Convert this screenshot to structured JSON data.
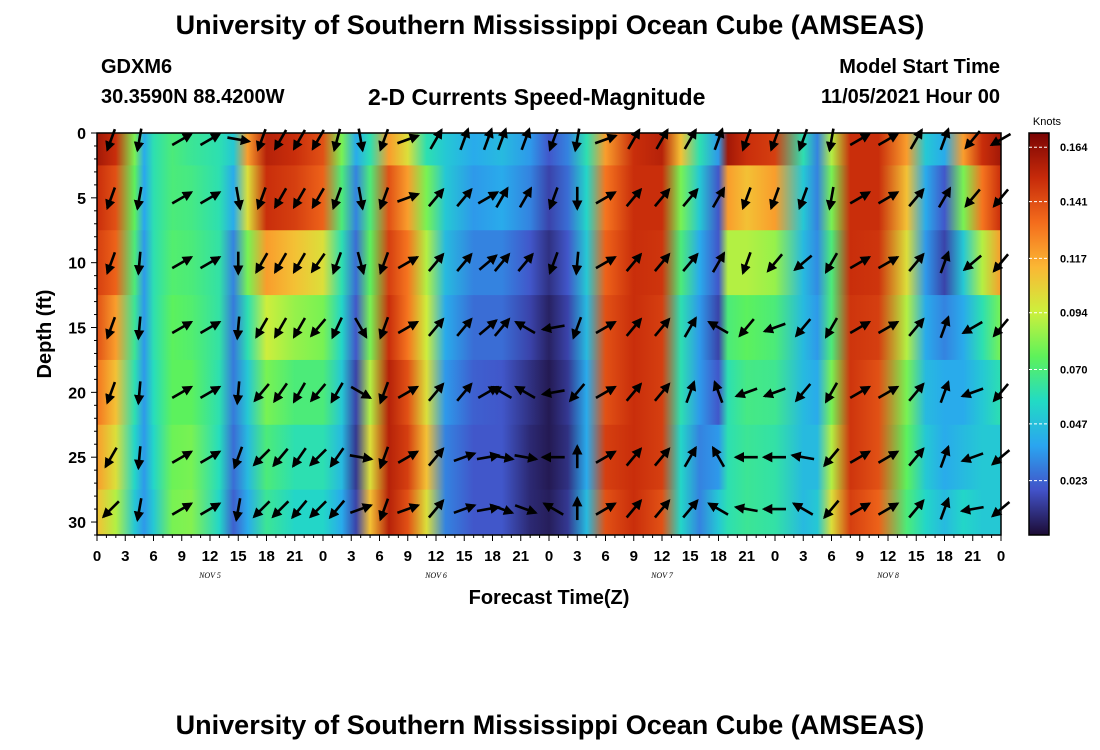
{
  "header": {
    "main_title": "University of Southern Mississippi Ocean Cube (AMSEAS)",
    "station_id": "GDXM6",
    "station_coords": "30.3590N  88.4200W",
    "chart_title": "2-D Currents Speed-Magnitude",
    "model_start_label": "Model Start Time",
    "model_start_value": "11/05/2021 Hour 00"
  },
  "footer": {
    "bottom_title": "University of Southern Mississippi Ocean Cube (AMSEAS)"
  },
  "chart_data": {
    "type": "heatmap",
    "title": "2-D Currents Speed-Magnitude",
    "xlabel": "Forecast Time(Z)",
    "ylabel": "Depth (ft)",
    "xlim": [
      0,
      96
    ],
    "ylim": [
      31,
      0
    ],
    "x_ticks": [
      {
        "hour": 0,
        "label": "0"
      },
      {
        "hour": 3,
        "label": "3"
      },
      {
        "hour": 6,
        "label": "6"
      },
      {
        "hour": 9,
        "label": "9"
      },
      {
        "hour": 12,
        "label": "12"
      },
      {
        "hour": 15,
        "label": "15"
      },
      {
        "hour": 18,
        "label": "18"
      },
      {
        "hour": 21,
        "label": "21"
      },
      {
        "hour": 24,
        "label": "0"
      },
      {
        "hour": 27,
        "label": "3"
      },
      {
        "hour": 30,
        "label": "6"
      },
      {
        "hour": 33,
        "label": "9"
      },
      {
        "hour": 36,
        "label": "12"
      },
      {
        "hour": 39,
        "label": "15"
      },
      {
        "hour": 42,
        "label": "18"
      },
      {
        "hour": 45,
        "label": "21"
      },
      {
        "hour": 48,
        "label": "0"
      },
      {
        "hour": 51,
        "label": "3"
      },
      {
        "hour": 54,
        "label": "6"
      },
      {
        "hour": 57,
        "label": "9"
      },
      {
        "hour": 60,
        "label": "12"
      },
      {
        "hour": 63,
        "label": "15"
      },
      {
        "hour": 66,
        "label": "18"
      },
      {
        "hour": 69,
        "label": "21"
      },
      {
        "hour": 72,
        "label": "0"
      },
      {
        "hour": 75,
        "label": "3"
      },
      {
        "hour": 78,
        "label": "6"
      },
      {
        "hour": 81,
        "label": "9"
      },
      {
        "hour": 84,
        "label": "12"
      },
      {
        "hour": 87,
        "label": "15"
      },
      {
        "hour": 90,
        "label": "18"
      },
      {
        "hour": 93,
        "label": "21"
      },
      {
        "hour": 96,
        "label": "0"
      }
    ],
    "day_labels": [
      {
        "hour": 12,
        "label": "NOV 5"
      },
      {
        "hour": 36,
        "label": "NOV 6"
      },
      {
        "hour": 60,
        "label": "NOV 7"
      },
      {
        "hour": 84,
        "label": "NOV 8"
      }
    ],
    "y_ticks": [
      0,
      5,
      10,
      15,
      20,
      25,
      30
    ],
    "depths": [
      0,
      5,
      10,
      15,
      20,
      25,
      30
    ],
    "speed_knots_by_hour": [
      {
        "hour": 0,
        "speed": [
          0.16,
          0.15,
          0.145,
          0.14,
          0.13,
          0.12,
          0.11
        ]
      },
      {
        "hour": 2,
        "speed": [
          0.15,
          0.14,
          0.135,
          0.12,
          0.11,
          0.1,
          0.09
        ]
      },
      {
        "hour": 4,
        "speed": [
          0.08,
          0.075,
          0.07,
          0.065,
          0.06,
          0.055,
          0.05
        ]
      },
      {
        "hour": 5,
        "speed": [
          0.04,
          0.038,
          0.035,
          0.035,
          0.035,
          0.035,
          0.035
        ]
      },
      {
        "hour": 6,
        "speed": [
          0.06,
          0.06,
          0.06,
          0.06,
          0.058,
          0.055,
          0.05
        ]
      },
      {
        "hour": 8,
        "speed": [
          0.07,
          0.07,
          0.072,
          0.075,
          0.075,
          0.078,
          0.08
        ]
      },
      {
        "hour": 10,
        "speed": [
          0.065,
          0.068,
          0.07,
          0.072,
          0.075,
          0.08,
          0.082
        ]
      },
      {
        "hour": 13,
        "speed": [
          0.06,
          0.06,
          0.062,
          0.062,
          0.06,
          0.058,
          0.055
        ]
      },
      {
        "hour": 14.5,
        "speed": [
          0.05,
          0.04,
          0.03,
          0.028,
          0.028,
          0.025,
          0.022
        ]
      },
      {
        "hour": 16,
        "speed": [
          0.12,
          0.1,
          0.08,
          0.06,
          0.05,
          0.045,
          0.04
        ]
      },
      {
        "hour": 18,
        "speed": [
          0.155,
          0.15,
          0.12,
          0.095,
          0.08,
          0.07,
          0.065
        ]
      },
      {
        "hour": 21,
        "speed": [
          0.15,
          0.145,
          0.11,
          0.085,
          0.07,
          0.06,
          0.055
        ]
      },
      {
        "hour": 24,
        "speed": [
          0.14,
          0.135,
          0.1,
          0.08,
          0.07,
          0.06,
          0.055
        ]
      },
      {
        "hour": 26,
        "speed": [
          0.08,
          0.07,
          0.06,
          0.055,
          0.05,
          0.045,
          0.04
        ]
      },
      {
        "hour": 27.5,
        "speed": [
          0.04,
          0.03,
          0.025,
          0.02,
          0.015,
          0.012,
          0.015
        ]
      },
      {
        "hour": 29,
        "speed": [
          0.06,
          0.07,
          0.075,
          0.08,
          0.09,
          0.1,
          0.11
        ]
      },
      {
        "hour": 31,
        "speed": [
          0.12,
          0.14,
          0.145,
          0.15,
          0.155,
          0.155,
          0.155
        ]
      },
      {
        "hour": 33,
        "speed": [
          0.1,
          0.12,
          0.13,
          0.13,
          0.14,
          0.145,
          0.14
        ]
      },
      {
        "hour": 35,
        "speed": [
          0.06,
          0.08,
          0.09,
          0.095,
          0.1,
          0.11,
          0.1
        ]
      },
      {
        "hour": 37,
        "speed": [
          0.05,
          0.05,
          0.045,
          0.04,
          0.035,
          0.03,
          0.03
        ]
      },
      {
        "hour": 40,
        "speed": [
          0.04,
          0.035,
          0.03,
          0.025,
          0.022,
          0.02,
          0.02
        ]
      },
      {
        "hour": 43,
        "speed": [
          0.045,
          0.04,
          0.03,
          0.025,
          0.02,
          0.02,
          0.02
        ]
      },
      {
        "hour": 46,
        "speed": [
          0.035,
          0.03,
          0.02,
          0.015,
          0.01,
          0.008,
          0.008
        ]
      },
      {
        "hour": 48,
        "speed": [
          0.02,
          0.015,
          0.01,
          0.006,
          0.004,
          0.004,
          0.005
        ]
      },
      {
        "hour": 50,
        "speed": [
          0.03,
          0.025,
          0.02,
          0.015,
          0.012,
          0.01,
          0.012
        ]
      },
      {
        "hour": 52,
        "speed": [
          0.06,
          0.055,
          0.05,
          0.045,
          0.04,
          0.04,
          0.045
        ]
      },
      {
        "hour": 54,
        "speed": [
          0.12,
          0.13,
          0.135,
          0.14,
          0.14,
          0.145,
          0.14
        ]
      },
      {
        "hour": 57,
        "speed": [
          0.15,
          0.15,
          0.15,
          0.15,
          0.15,
          0.15,
          0.15
        ]
      },
      {
        "hour": 60,
        "speed": [
          0.155,
          0.15,
          0.148,
          0.145,
          0.145,
          0.145,
          0.14
        ]
      },
      {
        "hour": 62,
        "speed": [
          0.11,
          0.08,
          0.07,
          0.06,
          0.06,
          0.055,
          0.055
        ]
      },
      {
        "hour": 64,
        "speed": [
          0.06,
          0.05,
          0.04,
          0.035,
          0.035,
          0.03,
          0.03
        ]
      },
      {
        "hour": 66,
        "speed": [
          0.035,
          0.02,
          0.02,
          0.015,
          0.02,
          0.035,
          0.05
        ]
      },
      {
        "hour": 67,
        "speed": [
          0.16,
          0.12,
          0.09,
          0.07,
          0.06,
          0.06,
          0.06
        ]
      },
      {
        "hour": 69,
        "speed": [
          0.15,
          0.11,
          0.09,
          0.075,
          0.068,
          0.065,
          0.065
        ]
      },
      {
        "hour": 72,
        "speed": [
          0.145,
          0.12,
          0.085,
          0.07,
          0.066,
          0.062,
          0.062
        ]
      },
      {
        "hour": 75,
        "speed": [
          0.06,
          0.05,
          0.045,
          0.045,
          0.045,
          0.045,
          0.045
        ]
      },
      {
        "hour": 76.5,
        "speed": [
          0.03,
          0.03,
          0.032,
          0.035,
          0.04,
          0.045,
          0.05
        ]
      },
      {
        "hour": 78,
        "speed": [
          0.09,
          0.08,
          0.07,
          0.07,
          0.08,
          0.09,
          0.1
        ]
      },
      {
        "hour": 80,
        "speed": [
          0.15,
          0.15,
          0.15,
          0.148,
          0.148,
          0.148,
          0.145
        ]
      },
      {
        "hour": 83,
        "speed": [
          0.15,
          0.15,
          0.148,
          0.145,
          0.14,
          0.14,
          0.135
        ]
      },
      {
        "hour": 86,
        "speed": [
          0.12,
          0.11,
          0.1,
          0.09,
          0.08,
          0.075,
          0.07
        ]
      },
      {
        "hour": 88,
        "speed": [
          0.05,
          0.04,
          0.035,
          0.04,
          0.045,
          0.05,
          0.055
        ]
      },
      {
        "hour": 90,
        "speed": [
          0.04,
          0.02,
          0.015,
          0.03,
          0.04,
          0.04,
          0.045
        ]
      },
      {
        "hour": 92,
        "speed": [
          0.12,
          0.08,
          0.05,
          0.04,
          0.04,
          0.045,
          0.055
        ]
      },
      {
        "hour": 94,
        "speed": [
          0.15,
          0.13,
          0.09,
          0.06,
          0.05,
          0.05,
          0.05
        ]
      },
      {
        "hour": 96,
        "speed": [
          0.16,
          0.15,
          0.12,
          0.08,
          0.06,
          0.05,
          0.05
        ]
      }
    ],
    "vector_hours": [
      1.5,
      4.5,
      9,
      12,
      15,
      17.5,
      19.5,
      21.5,
      23.5,
      25.5,
      28,
      30.5,
      33,
      36,
      39,
      41.5,
      43,
      45.5,
      48.5,
      51,
      54,
      57,
      60,
      63,
      66,
      69,
      72,
      75,
      78,
      81,
      84,
      87,
      90,
      93,
      96
    ],
    "vector_depths": [
      0.5,
      5,
      10,
      15,
      20,
      25,
      29
    ],
    "direction_deg_by_hour": [
      [
        200,
        200,
        200,
        200,
        200,
        210,
        225
      ],
      [
        190,
        190,
        185,
        185,
        185,
        185,
        190
      ],
      [
        60,
        60,
        60,
        60,
        60,
        60,
        60
      ],
      [
        60,
        60,
        60,
        60,
        60,
        60,
        60
      ],
      [
        100,
        170,
        180,
        185,
        185,
        200,
        190
      ],
      [
        200,
        200,
        210,
        210,
        220,
        225,
        225
      ],
      [
        210,
        210,
        210,
        210,
        215,
        220,
        225
      ],
      [
        210,
        210,
        210,
        210,
        210,
        215,
        220
      ],
      [
        210,
        210,
        215,
        220,
        220,
        225,
        225
      ],
      [
        195,
        200,
        200,
        205,
        210,
        215,
        220
      ],
      [
        170,
        170,
        165,
        150,
        120,
        100,
        70
      ],
      [
        200,
        200,
        200,
        200,
        200,
        200,
        200
      ],
      [
        70,
        70,
        60,
        60,
        60,
        60,
        70
      ],
      [
        30,
        40,
        40,
        40,
        40,
        40,
        40
      ],
      [
        20,
        40,
        40,
        40,
        40,
        70,
        70
      ],
      [
        20,
        60,
        50,
        50,
        60,
        80,
        80
      ],
      [
        20,
        30,
        40,
        40,
        300,
        100,
        110
      ],
      [
        20,
        30,
        40,
        300,
        300,
        100,
        110
      ],
      [
        200,
        200,
        200,
        260,
        260,
        270,
        300
      ],
      [
        190,
        180,
        185,
        200,
        220,
        0,
        0
      ],
      [
        70,
        60,
        60,
        60,
        60,
        60,
        60
      ],
      [
        30,
        40,
        40,
        40,
        40,
        40,
        40
      ],
      [
        30,
        40,
        40,
        40,
        40,
        40,
        40
      ],
      [
        30,
        40,
        40,
        30,
        20,
        30,
        40
      ],
      [
        20,
        30,
        30,
        300,
        340,
        330,
        300
      ],
      [
        200,
        200,
        200,
        220,
        250,
        270,
        280
      ],
      [
        200,
        200,
        220,
        250,
        250,
        270,
        270
      ],
      [
        200,
        200,
        230,
        220,
        220,
        280,
        300
      ],
      [
        190,
        190,
        210,
        210,
        210,
        220,
        220
      ],
      [
        60,
        60,
        60,
        60,
        60,
        60,
        60
      ],
      [
        60,
        60,
        60,
        60,
        60,
        60,
        60
      ],
      [
        30,
        40,
        40,
        40,
        40,
        40,
        40
      ],
      [
        20,
        30,
        20,
        20,
        20,
        20,
        20
      ],
      [
        220,
        220,
        230,
        240,
        250,
        250,
        260
      ],
      [
        240,
        220,
        220,
        220,
        220,
        230,
        230
      ]
    ],
    "colorbar": {
      "title": "Knots",
      "ticks": [
        "0.164",
        "0.141",
        "0.117",
        "0.094",
        "0.070",
        "0.047",
        "0.023"
      ],
      "min": 0.0,
      "max": 0.17,
      "stops": [
        "#1c0b34",
        "#4252c8",
        "#2aa5f0",
        "#22dbc4",
        "#5ef25a",
        "#cdf03c",
        "#fbb734",
        "#f46c1c",
        "#c62a0a",
        "#7a0404"
      ]
    }
  }
}
